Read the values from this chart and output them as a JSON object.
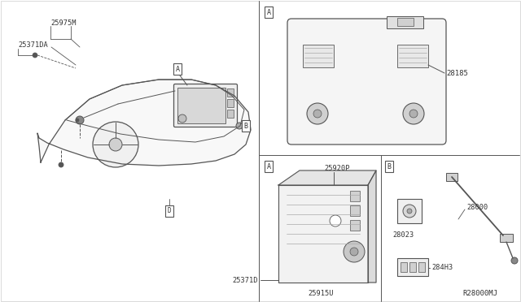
{
  "bg_color": "#ffffff",
  "line_color": "#555555",
  "text_color": "#333333",
  "ref_code": "R28000MJ",
  "labels": {
    "top_left_part": "25975M",
    "top_left_wire": "25371DA",
    "part_28185": "28185",
    "part_25920P": "25920P",
    "part_25371D": "25371D",
    "part_25915U": "25915U",
    "part_28023": "28023",
    "part_28000": "28000",
    "part_284H3": "284H3"
  }
}
